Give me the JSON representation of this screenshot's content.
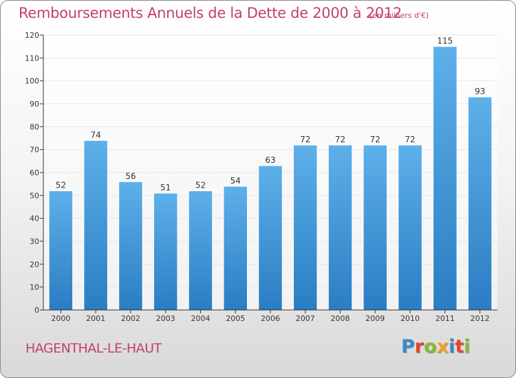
{
  "header": {
    "title": "Remboursements Annuels de la Dette de 2000 à 2012",
    "unit": "(en milliers d'€)"
  },
  "footer": {
    "commune": "HAGENTHAL-LE-HAUT",
    "logo": "Proxiti",
    "logo_colors": [
      "#3b88c8",
      "#e0462b",
      "#8ab832",
      "#f0a020",
      "#3b88c8",
      "#e0462b",
      "#8ab832"
    ]
  },
  "colors": {
    "bar_top": "#5eb0ea",
    "bar_bottom": "#2a7dc2",
    "grid": "#e6e6e6",
    "axis": "#333333",
    "label": "#333333",
    "title": "#c2406a"
  },
  "chart_data": {
    "type": "bar",
    "title": "Remboursements Annuels de la Dette de 2000 à 2012",
    "subtitle": "(en milliers d'€)",
    "xlabel": "",
    "ylabel": "",
    "categories": [
      "2000",
      "2001",
      "2002",
      "2003",
      "2004",
      "2005",
      "2006",
      "2007",
      "2008",
      "2009",
      "2010",
      "2011",
      "2012"
    ],
    "values": [
      52,
      74,
      56,
      51,
      52,
      54,
      63,
      72,
      72,
      72,
      72,
      115,
      93
    ],
    "data_labels": [
      "52",
      "74",
      "56",
      "51",
      "52",
      "54",
      "63",
      "72",
      "72",
      "72",
      "72",
      "115",
      "93"
    ],
    "ylim": [
      0,
      120
    ],
    "yticks": [
      0,
      10,
      20,
      30,
      40,
      50,
      60,
      70,
      80,
      90,
      100,
      110,
      120
    ],
    "grid": true,
    "legend": "none"
  }
}
